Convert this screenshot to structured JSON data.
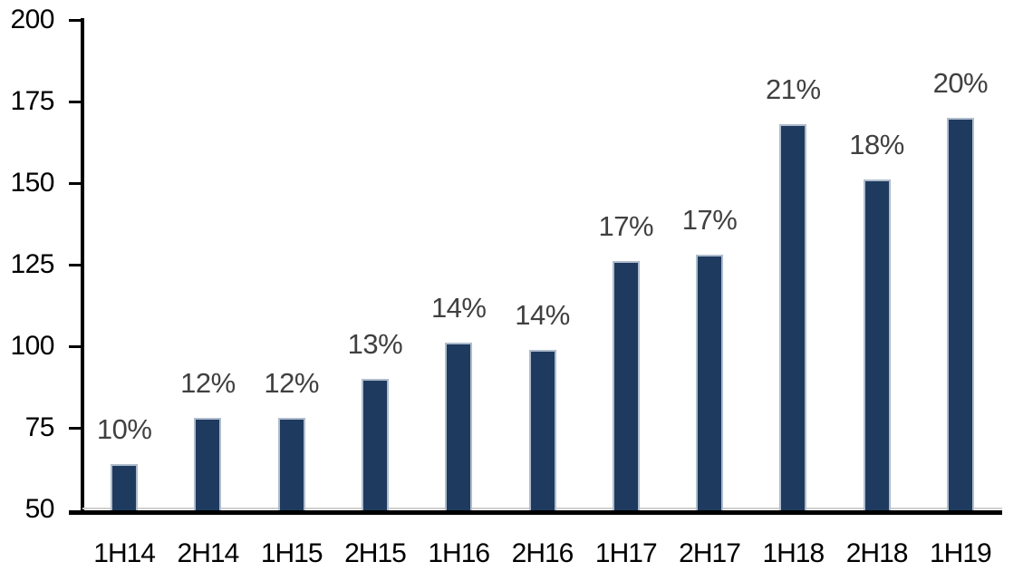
{
  "chart_data": {
    "type": "bar",
    "categories": [
      "1H14",
      "2H14",
      "1H15",
      "2H15",
      "1H16",
      "2H16",
      "1H17",
      "2H17",
      "1H18",
      "2H18",
      "1H19"
    ],
    "values": [
      64,
      78,
      78,
      90,
      101,
      99,
      126,
      128,
      168,
      151,
      170
    ],
    "bar_labels": [
      "10%",
      "12%",
      "12%",
      "13%",
      "14%",
      "14%",
      "17%",
      "17%",
      "21%",
      "18%",
      "20%"
    ],
    "yticks": [
      50,
      75,
      100,
      125,
      150,
      175,
      200
    ],
    "ylim": [
      50,
      200
    ],
    "title": "",
    "xlabel": "",
    "ylabel": "",
    "grid": "off",
    "legend": "none",
    "colors": {
      "bar_fill": "#1F3A5F",
      "bar_border": "#AFBCCC",
      "data_label": "#404040",
      "axis_text": "#000000",
      "axis_line": "#000000",
      "baseline_gray_line": "#D0CECE",
      "background": "#FFFFFF"
    }
  }
}
